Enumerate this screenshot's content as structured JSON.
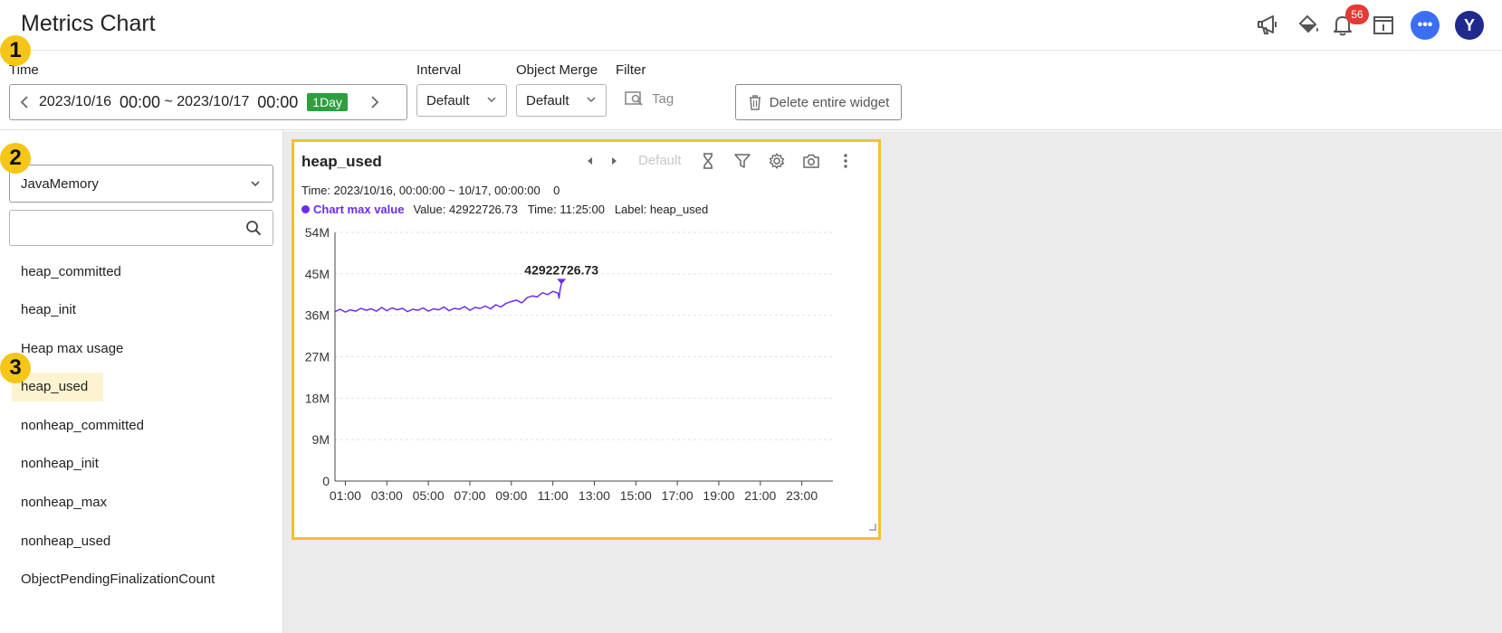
{
  "app": {
    "title": "Metrics Chart"
  },
  "header": {
    "notification_count": "56",
    "avatar_initial": "Y",
    "chat_dots": "•••"
  },
  "markers": [
    "1",
    "2",
    "3"
  ],
  "toolbar": {
    "time_label": "Time",
    "time_start_date": "2023/10/16",
    "time_start_clock": "00:00",
    "time_sep": "~",
    "time_end_date": "2023/10/17",
    "time_end_clock": "00:00",
    "time_range_badge": "1Day",
    "interval_label": "Interval",
    "interval_value": "Default",
    "merge_label": "Object Merge",
    "merge_value": "Default",
    "filter_label": "Filter",
    "tag_label": "Tag",
    "delete_label": "Delete entire widget"
  },
  "sidebar": {
    "category_value": "JavaMemory",
    "search_value": "",
    "metrics": [
      "heap_committed",
      "heap_init",
      "Heap max usage",
      "heap_used",
      "nonheap_committed",
      "nonheap_init",
      "nonheap_max",
      "nonheap_used",
      "ObjectPendingFinalizationCount"
    ],
    "active_metric": "heap_used"
  },
  "widget": {
    "title": "heap_used",
    "default_label": "Default",
    "time_text": "Time: 2023/10/16, 00:00:00 ~ 10/17, 00:00:00",
    "time_count": "0",
    "max_title": "Chart max value",
    "max_value_text": "Value: 42922726.73",
    "max_time_text": "Time: 11:25:00",
    "max_label_text": "Label: heap_used",
    "series_color": "#6a2cf0",
    "highlight_color": "#f5c02f"
  },
  "chart_data": {
    "type": "line",
    "title": "",
    "xlabel": "",
    "ylabel": "",
    "x_ticks": [
      "01:00",
      "03:00",
      "05:00",
      "07:00",
      "09:00",
      "11:00",
      "13:00",
      "15:00",
      "17:00",
      "19:00",
      "21:00",
      "23:00"
    ],
    "y_ticks": [
      "0",
      "9M",
      "18M",
      "27M",
      "36M",
      "45M",
      "54M"
    ],
    "xlim_hours": [
      0.5,
      24.5
    ],
    "ylim": [
      0,
      54000000
    ],
    "grid": true,
    "max_point": {
      "x_hour": 11.4167,
      "y": 42922726.73,
      "label": "42922726.73"
    },
    "series": [
      {
        "x_hours": [
          0.5,
          0.75,
          1.0,
          1.25,
          1.5,
          1.75,
          2.0,
          2.25,
          2.5,
          2.75,
          3.0,
          3.25,
          3.5,
          3.75,
          4.0,
          4.25,
          4.5,
          4.75,
          5.0,
          5.25,
          5.5,
          5.75,
          6.0,
          6.25,
          6.5,
          6.75,
          7.0,
          7.25,
          7.5,
          7.75,
          8.0,
          8.25,
          8.5,
          8.75,
          9.0,
          9.25,
          9.5,
          9.75,
          10.0,
          10.25,
          10.5,
          10.75,
          11.0,
          11.25,
          11.3,
          11.35,
          11.4167
        ],
        "values": [
          36800000,
          37300000,
          36700000,
          37200000,
          36900000,
          37500000,
          37100000,
          37400000,
          36900000,
          37700000,
          37000000,
          37600000,
          37200000,
          37500000,
          36800000,
          37300000,
          37100000,
          37600000,
          36900000,
          37400000,
          37200000,
          37800000,
          37000000,
          37500000,
          37300000,
          37900000,
          37100000,
          37700000,
          37500000,
          38000000,
          37400000,
          38300000,
          37800000,
          38600000,
          39000000,
          39300000,
          38700000,
          39800000,
          40200000,
          40000000,
          40900000,
          40500000,
          41200000,
          40800000,
          39700000,
          41500000,
          42922726.73
        ]
      }
    ]
  }
}
